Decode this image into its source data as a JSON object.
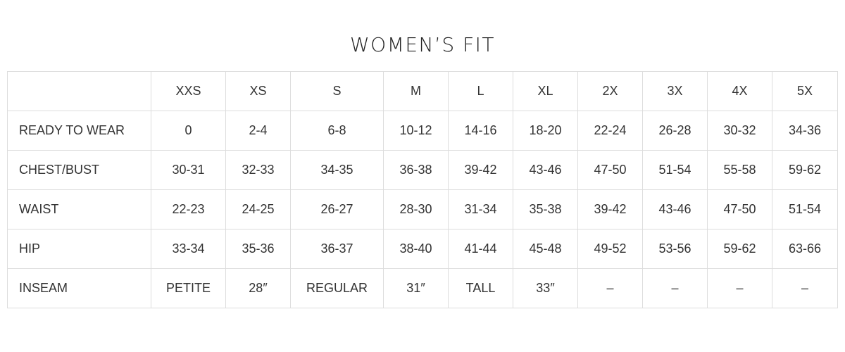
{
  "title": "WOMEN’S FIT",
  "columns": [
    "",
    "XXS",
    "XS",
    "S",
    "M",
    "L",
    "XL",
    "2X",
    "3X",
    "4X",
    "5X"
  ],
  "rows": [
    {
      "label": "READY TO WEAR",
      "values": [
        "0",
        "2-4",
        "6-8",
        "10-12",
        "14-16",
        "18-20",
        "22-24",
        "26-28",
        "30-32",
        "34-36"
      ]
    },
    {
      "label": "CHEST/BUST",
      "values": [
        "30-31",
        "32-33",
        "34-35",
        "36-38",
        "39-42",
        "43-46",
        "47-50",
        "51-54",
        "55-58",
        "59-62"
      ]
    },
    {
      "label": "WAIST",
      "values": [
        "22-23",
        "24-25",
        "26-27",
        "28-30",
        "31-34",
        "35-38",
        "39-42",
        "43-46",
        "47-50",
        "51-54"
      ]
    },
    {
      "label": "HIP",
      "values": [
        "33-34",
        "35-36",
        "36-37",
        "38-40",
        "41-44",
        "45-48",
        "49-52",
        "53-56",
        "59-62",
        "63-66"
      ]
    },
    {
      "label": "INSEAM",
      "values": [
        "PETITE",
        "28″",
        "REGULAR",
        "31″",
        "TALL",
        "33″",
        "–",
        "–",
        "–",
        "–"
      ]
    }
  ]
}
